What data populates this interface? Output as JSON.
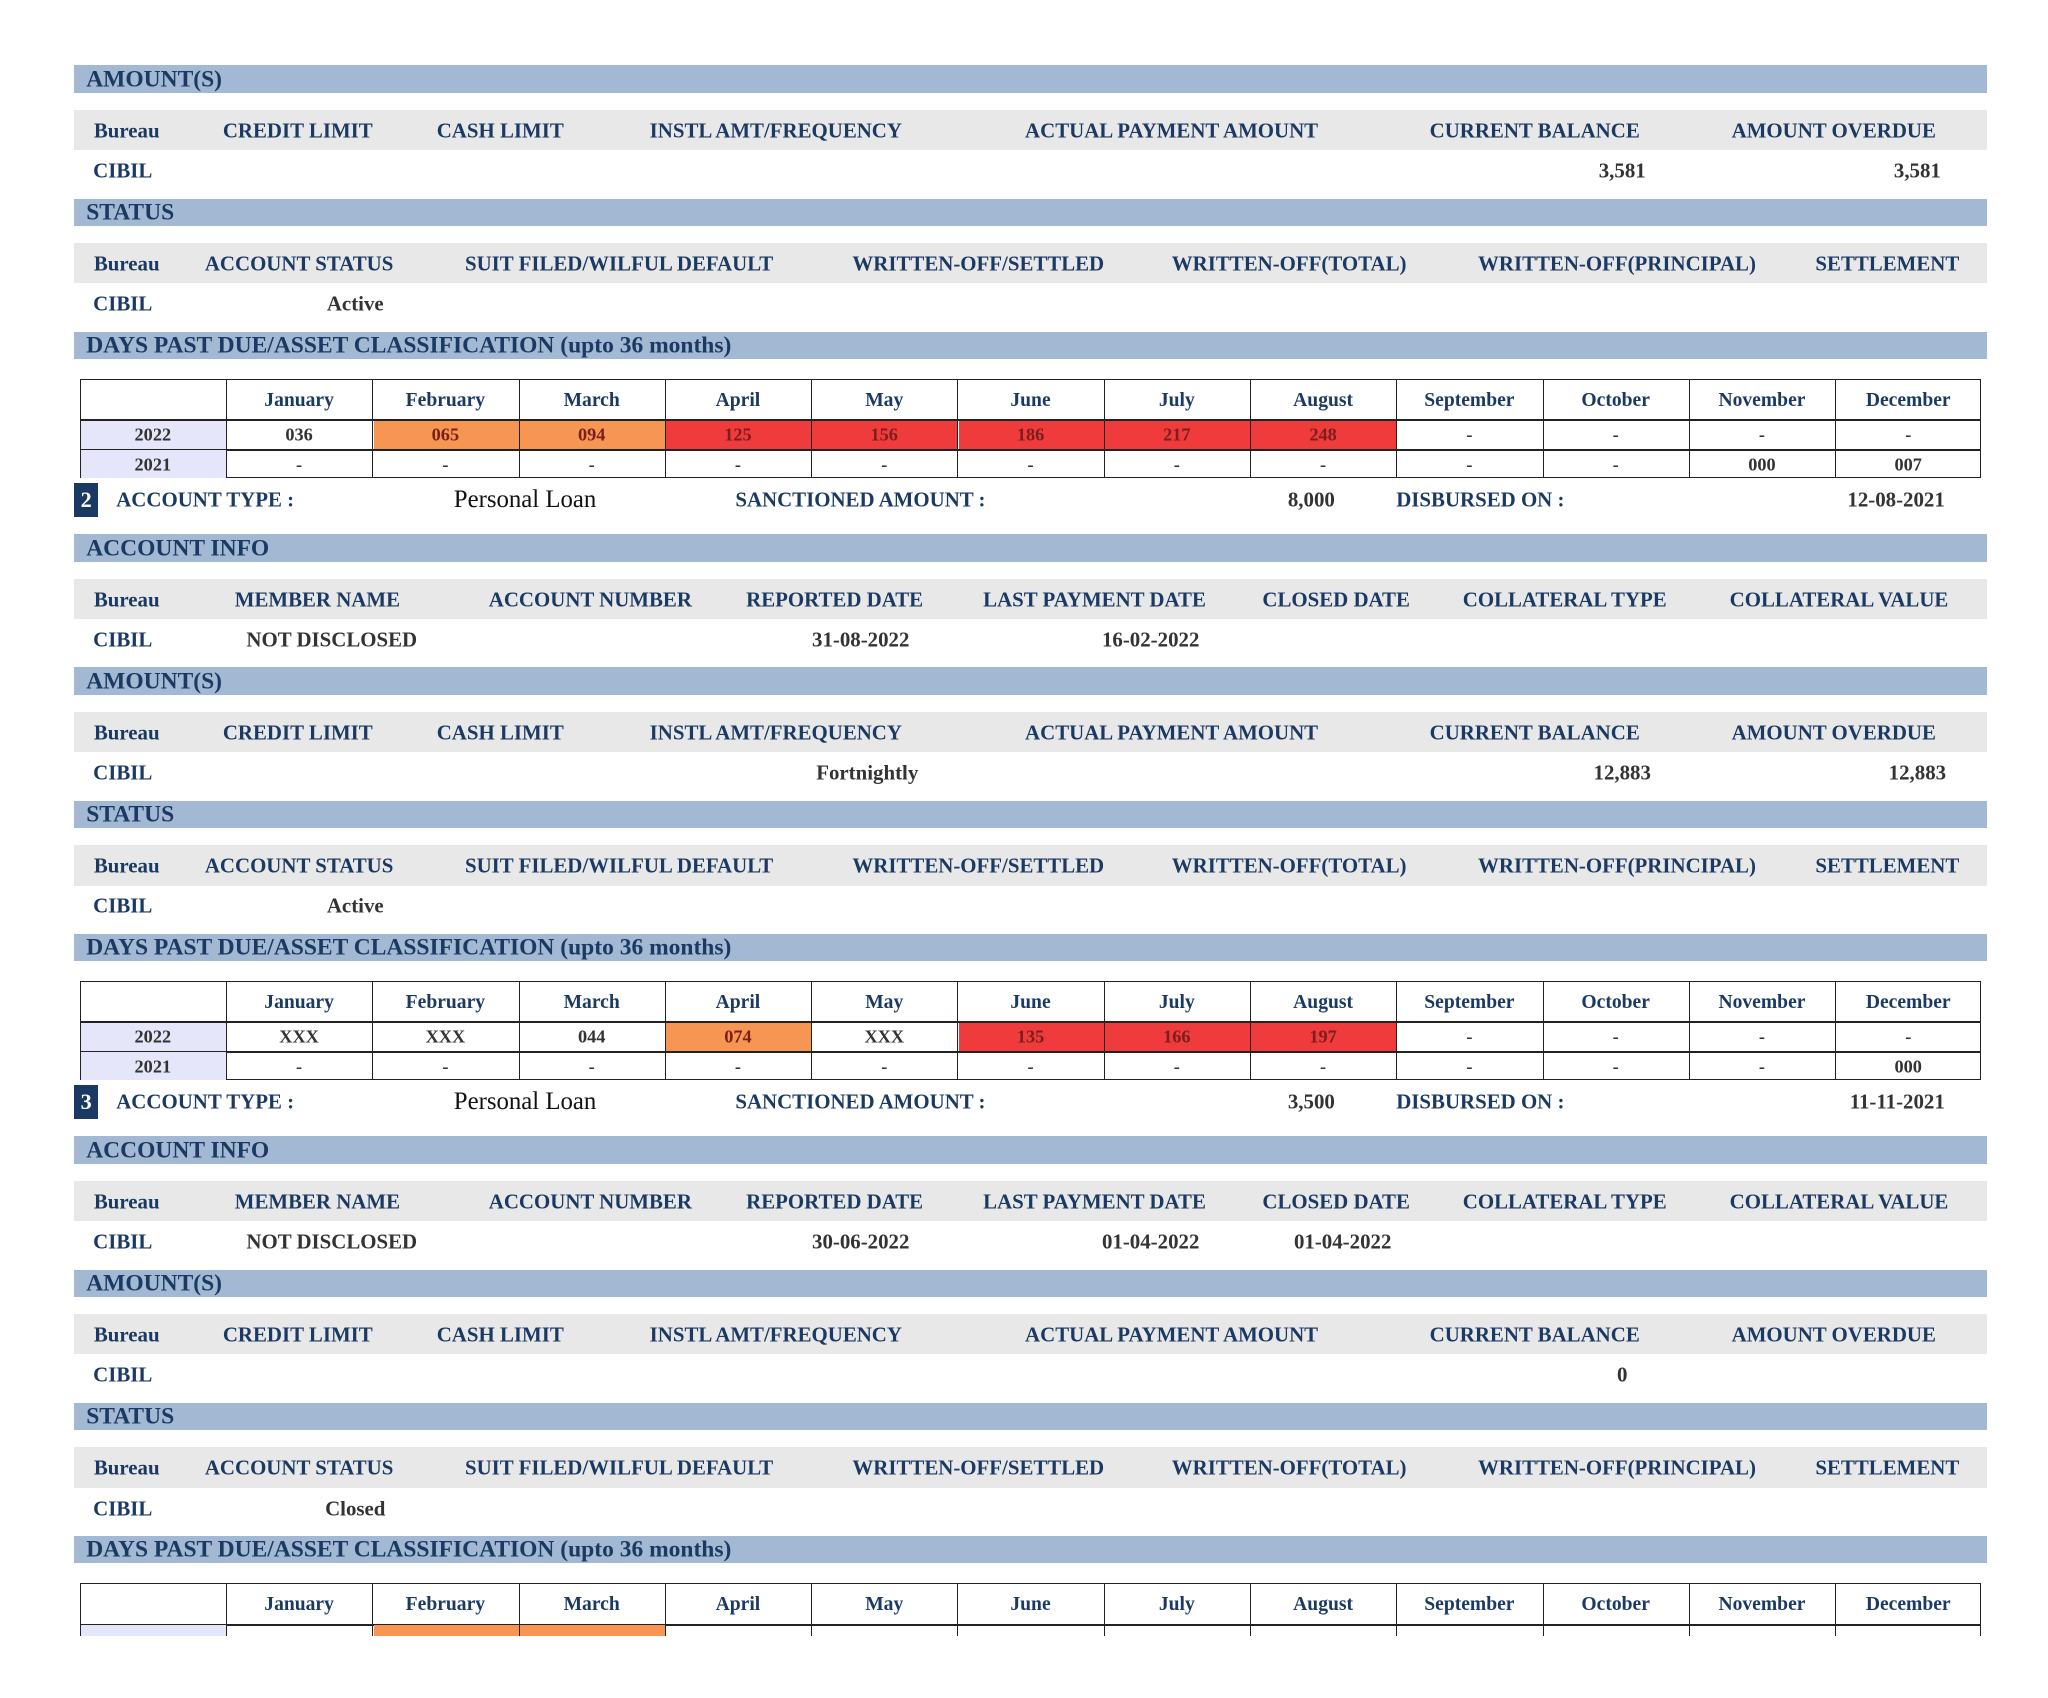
{
  "accounts": [
    {
      "amounts": {
        "title": "AMOUNT(S)",
        "headers": [
          "Bureau",
          "CREDIT LIMIT",
          "CASH LIMIT",
          "INSTL AMT/FREQUENCY",
          "ACTUAL PAYMENT AMOUNT",
          "CURRENT BALANCE",
          "AMOUNT OVERDUE"
        ],
        "row": [
          "CIBIL",
          null,
          null,
          null,
          null,
          "3,581",
          "3,581"
        ]
      },
      "status": {
        "title": "STATUS",
        "headers": [
          "Bureau",
          "ACCOUNT STATUS",
          "SUIT FILED/WILFUL DEFAULT",
          "WRITTEN-OFF/SETTLED",
          "WRITTEN-OFF(TOTAL)",
          "WRITTEN-OFF(PRINCIPAL)",
          "SETTLEMENT"
        ],
        "row": [
          "CIBIL",
          "Active",
          null,
          null,
          null,
          null,
          null
        ]
      },
      "dpd": {
        "title": "DAYS PAST DUE/ASSET CLASSIFICATION (upto 36 months)",
        "months": [
          "January",
          "February",
          "March",
          "April",
          "May",
          "June",
          "July",
          "August",
          "September",
          "October",
          "November",
          "December"
        ],
        "rows": [
          {
            "year": "2022",
            "values": [
              "036",
              "065",
              "094",
              "125",
              "156",
              "186",
              "217",
              "248",
              "-",
              "-",
              "-",
              "-"
            ],
            "colors": [
              null,
              "#f79552",
              "#f79552",
              "#ef3b3b",
              "#ef3b3b",
              "#ef3b3b",
              "#ef3b3b",
              "#ef3b3b",
              null,
              null,
              null,
              null
            ]
          },
          {
            "year": "2021",
            "values": [
              "-",
              "-",
              "-",
              "-",
              "-",
              "-",
              "-",
              "-",
              "-",
              "-",
              "000",
              "007"
            ]
          }
        ]
      }
    },
    {
      "summary": {
        "number": "2",
        "account_type_label": "ACCOUNT TYPE :",
        "account_type": "Personal Loan",
        "sanctioned_label": "SANCTIONED AMOUNT :",
        "sanctioned": "8,000",
        "disbursed_label": "DISBURSED ON :",
        "disbursed": "12-08-2021"
      },
      "info": {
        "title": "ACCOUNT INFO",
        "headers": [
          "Bureau",
          "MEMBER NAME",
          "ACCOUNT NUMBER",
          "REPORTED DATE",
          "LAST PAYMENT DATE",
          "CLOSED DATE",
          "COLLATERAL TYPE",
          "COLLATERAL VALUE"
        ],
        "row": [
          "CIBIL",
          "NOT DISCLOSED",
          null,
          "31-08-2022",
          "16-02-2022",
          null,
          null,
          null
        ]
      },
      "amounts": {
        "title": "AMOUNT(S)",
        "headers": [
          "Bureau",
          "CREDIT LIMIT",
          "CASH LIMIT",
          "INSTL AMT/FREQUENCY",
          "ACTUAL PAYMENT AMOUNT",
          "CURRENT BALANCE",
          "AMOUNT OVERDUE"
        ],
        "row": [
          "CIBIL",
          null,
          null,
          "Fortnightly",
          null,
          "12,883",
          "12,883"
        ]
      },
      "status": {
        "title": "STATUS",
        "headers": [
          "Bureau",
          "ACCOUNT STATUS",
          "SUIT FILED/WILFUL DEFAULT",
          "WRITTEN-OFF/SETTLED",
          "WRITTEN-OFF(TOTAL)",
          "WRITTEN-OFF(PRINCIPAL)",
          "SETTLEMENT"
        ],
        "row": [
          "CIBIL",
          "Active",
          null,
          null,
          null,
          null,
          null
        ]
      },
      "dpd": {
        "title": "DAYS PAST DUE/ASSET CLASSIFICATION (upto 36 months)",
        "months": [
          "January",
          "February",
          "March",
          "April",
          "May",
          "June",
          "July",
          "August",
          "September",
          "October",
          "November",
          "December"
        ],
        "rows": [
          {
            "year": "2022",
            "values": [
              "XXX",
              "XXX",
              "044",
              "074",
              "XXX",
              "135",
              "166",
              "197",
              "-",
              "-",
              "-",
              "-"
            ],
            "colors": [
              null,
              null,
              null,
              "#f79552",
              null,
              "#ef3b3b",
              "#ef3b3b",
              "#ef3b3b",
              null,
              null,
              null,
              null
            ]
          },
          {
            "year": "2021",
            "values": [
              "-",
              "-",
              "-",
              "-",
              "-",
              "-",
              "-",
              "-",
              "-",
              "-",
              "-",
              "000"
            ]
          }
        ]
      }
    },
    {
      "summary": {
        "number": "3",
        "account_type_label": "ACCOUNT TYPE :",
        "account_type": "Personal Loan",
        "sanctioned_label": "SANCTIONED AMOUNT :",
        "sanctioned": "3,500",
        "disbursed_label": "DISBURSED ON :",
        "disbursed": "11-11-2021"
      },
      "info": {
        "title": "ACCOUNT INFO",
        "headers": [
          "Bureau",
          "MEMBER NAME",
          "ACCOUNT NUMBER",
          "REPORTED DATE",
          "LAST PAYMENT DATE",
          "CLOSED DATE",
          "COLLATERAL TYPE",
          "COLLATERAL VALUE"
        ],
        "row": [
          "CIBIL",
          "NOT DISCLOSED",
          null,
          "30-06-2022",
          "01-04-2022",
          "01-04-2022",
          null,
          null
        ]
      },
      "amounts": {
        "title": "AMOUNT(S)",
        "headers": [
          "Bureau",
          "CREDIT LIMIT",
          "CASH LIMIT",
          "INSTL AMT/FREQUENCY",
          "ACTUAL PAYMENT AMOUNT",
          "CURRENT BALANCE",
          "AMOUNT OVERDUE"
        ],
        "row": [
          "CIBIL",
          null,
          null,
          null,
          null,
          "0",
          null
        ]
      },
      "status": {
        "title": "STATUS",
        "headers": [
          "Bureau",
          "ACCOUNT STATUS",
          "SUIT FILED/WILFUL DEFAULT",
          "WRITTEN-OFF/SETTLED",
          "WRITTEN-OFF(TOTAL)",
          "WRITTEN-OFF(PRINCIPAL)",
          "SETTLEMENT"
        ],
        "row": [
          "CIBIL",
          "Closed",
          null,
          null,
          null,
          null,
          null
        ]
      },
      "dpd": {
        "title": "DAYS PAST DUE/ASSET CLASSIFICATION (upto 36 months)",
        "months": [
          "January",
          "February",
          "March",
          "April",
          "May",
          "June",
          "July",
          "August",
          "September",
          "October",
          "November",
          "December"
        ],
        "rows": [
          {
            "year": null,
            "values": [
              null,
              null,
              null,
              null,
              null,
              null,
              null,
              null,
              null,
              null,
              null,
              null
            ],
            "colors": [
              null,
              "#f79552",
              "#f79552",
              null,
              null,
              null,
              null,
              null,
              null,
              null,
              null,
              null
            ]
          }
        ]
      }
    }
  ]
}
